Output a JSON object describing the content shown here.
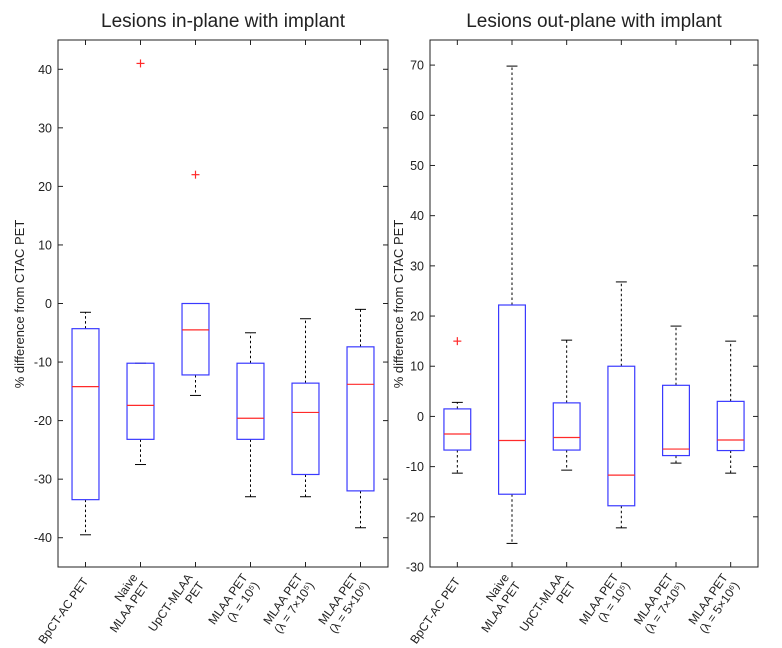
{
  "ylabel": "% difference from CTAC PET",
  "colors": {
    "box": "#3a3aff",
    "median": "#ff2a2a",
    "outlier": "#ff2a2a",
    "whisker": "#000000",
    "axis": "#222222"
  },
  "chart_data": [
    {
      "type": "box",
      "title": "Lesions in-plane with implant",
      "ylabel": "% difference from CTAC PET",
      "ylim": [
        -45,
        45
      ],
      "yticks": [
        -40,
        -30,
        -20,
        -10,
        0,
        10,
        20,
        30,
        40
      ],
      "grid": false,
      "categories": [
        {
          "lines": [
            "BpCT-AC PET"
          ]
        },
        {
          "lines": [
            "Naive",
            "MLAA PET"
          ]
        },
        {
          "lines": [
            "UpCT-MLAA",
            "PET"
          ]
        },
        {
          "lines": [
            "MLAA PET",
            "(λ = 10⁵)"
          ]
        },
        {
          "lines": [
            "MLAA PET",
            "(λ = 7×10⁵)"
          ]
        },
        {
          "lines": [
            "MLAA PET",
            "(λ = 5×10⁶)"
          ]
        }
      ],
      "boxes": [
        {
          "whisker_low": -39.5,
          "q1": -33.5,
          "median": -14.2,
          "q3": -4.3,
          "whisker_high": -1.5,
          "outliers": []
        },
        {
          "whisker_low": -27.5,
          "q1": -23.2,
          "median": -17.4,
          "q3": -10.2,
          "whisker_high": -10.2,
          "outliers": [
            41
          ]
        },
        {
          "whisker_low": -15.7,
          "q1": -12.2,
          "median": -4.5,
          "q3": 0,
          "whisker_high": 0,
          "outliers": [
            22
          ]
        },
        {
          "whisker_low": -33,
          "q1": -23.2,
          "median": -19.6,
          "q3": -10.2,
          "whisker_high": -5,
          "outliers": []
        },
        {
          "whisker_low": -33,
          "q1": -29.2,
          "median": -18.6,
          "q3": -13.6,
          "whisker_high": -2.6,
          "outliers": []
        },
        {
          "whisker_low": -38.3,
          "q1": -32,
          "median": -13.8,
          "q3": -7.4,
          "whisker_high": -1,
          "outliers": []
        }
      ]
    },
    {
      "type": "box",
      "title": "Lesions out-plane with implant",
      "ylabel": "% difference from CTAC PET",
      "ylim": [
        -30,
        75
      ],
      "yticks": [
        -30,
        -20,
        -10,
        0,
        10,
        20,
        30,
        40,
        50,
        60,
        70
      ],
      "grid": false,
      "categories": [
        {
          "lines": [
            "BpCT-AC PET"
          ]
        },
        {
          "lines": [
            "Naive",
            "MLAA PET"
          ]
        },
        {
          "lines": [
            "UpCT-MLAA",
            "PET"
          ]
        },
        {
          "lines": [
            "MLAA PET",
            "(λ = 10⁵)"
          ]
        },
        {
          "lines": [
            "MLAA PET",
            "(λ = 7×10⁵)"
          ]
        },
        {
          "lines": [
            "MLAA PET",
            "(λ = 5×10⁶)"
          ]
        }
      ],
      "boxes": [
        {
          "whisker_low": -11.3,
          "q1": -6.7,
          "median": -3.5,
          "q3": 1.5,
          "whisker_high": 2.8,
          "outliers": [
            15
          ]
        },
        {
          "whisker_low": -25.3,
          "q1": -15.5,
          "median": -4.8,
          "q3": 22.2,
          "whisker_high": 69.8,
          "outliers": []
        },
        {
          "whisker_low": -10.7,
          "q1": -6.7,
          "median": -4.2,
          "q3": 2.7,
          "whisker_high": 15.2,
          "outliers": []
        },
        {
          "whisker_low": -22.2,
          "q1": -17.8,
          "median": -11.7,
          "q3": 10,
          "whisker_high": 26.8,
          "outliers": []
        },
        {
          "whisker_low": -9.3,
          "q1": -7.8,
          "median": -6.5,
          "q3": 6.2,
          "whisker_high": 18,
          "outliers": []
        },
        {
          "whisker_low": -11.3,
          "q1": -6.8,
          "median": -4.7,
          "q3": 3,
          "whisker_high": 15,
          "outliers": []
        }
      ]
    }
  ]
}
